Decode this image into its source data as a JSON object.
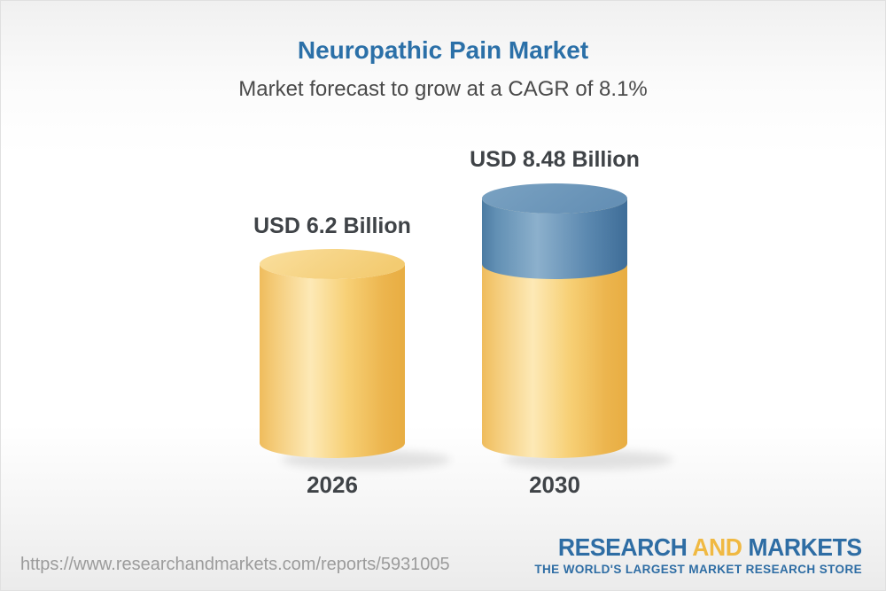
{
  "chart_data": {
    "type": "bar",
    "variant": "3d-cylinder",
    "title": "Neuropathic Pain Market",
    "subtitle": "Market forecast to grow at a CAGR of 8.1%",
    "cagr_percent": 8.1,
    "categories": [
      "2026",
      "2030"
    ],
    "values": [
      6.2,
      8.48
    ],
    "value_labels": [
      "USD 6.2 Billion",
      "USD 8.48 Billion"
    ],
    "unit": "USD Billion",
    "legend": "none",
    "grid": "off",
    "colors": {
      "bar_base": "#F5C963",
      "bar_growth_segment": "#6C96B9",
      "title_text": "#2B70A8",
      "label_text": "#3F4347"
    }
  },
  "footer": {
    "url": "https://www.researchandmarkets.com/reports/5931005",
    "logo": {
      "part1": "RESEARCH",
      "part2": "AND",
      "part3": "MARKETS",
      "tagline": "THE WORLD'S LARGEST MARKET RESEARCH STORE"
    }
  }
}
